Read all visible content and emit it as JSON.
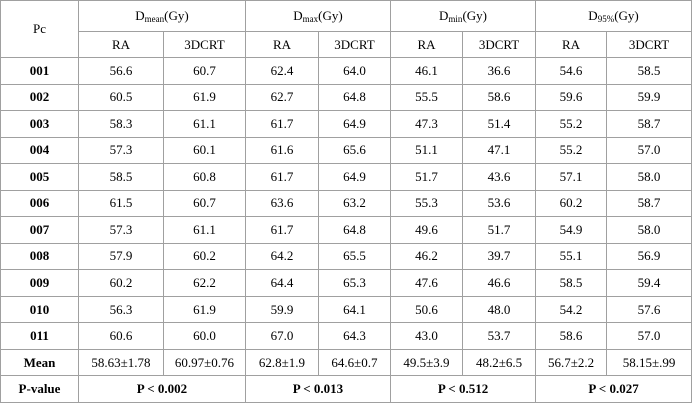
{
  "table": {
    "corner": "Pc",
    "groups": [
      {
        "base": "D",
        "sub": "mean",
        "unit": "(Gy)"
      },
      {
        "base": "D",
        "sub": "max",
        "unit": "(Gy)"
      },
      {
        "base": "D",
        "sub": "min",
        "unit": "(Gy)"
      },
      {
        "base": "D",
        "sub": "95%",
        "unit": "(Gy)"
      }
    ],
    "subheaders": [
      "RA",
      "3DCRT",
      "RA",
      "3DCRT",
      "RA",
      "3DCRT",
      "RA",
      "3DCRT"
    ],
    "rows": [
      {
        "label": "001",
        "cells": [
          "56.6",
          "60.7",
          "62.4",
          "64.0",
          "46.1",
          "36.6",
          "54.6",
          "58.5"
        ]
      },
      {
        "label": "002",
        "cells": [
          "60.5",
          "61.9",
          "62.7",
          "64.8",
          "55.5",
          "58.6",
          "59.6",
          "59.9"
        ]
      },
      {
        "label": "003",
        "cells": [
          "58.3",
          "61.1",
          "61.7",
          "64.9",
          "47.3",
          "51.4",
          "55.2",
          "58.7"
        ]
      },
      {
        "label": "004",
        "cells": [
          "57.3",
          "60.1",
          "61.6",
          "65.6",
          "51.1",
          "47.1",
          "55.2",
          "57.0"
        ]
      },
      {
        "label": "005",
        "cells": [
          "58.5",
          "60.8",
          "61.7",
          "64.9",
          "51.7",
          "43.6",
          "57.1",
          "58.0"
        ]
      },
      {
        "label": "006",
        "cells": [
          "61.5",
          "60.7",
          "63.6",
          "63.2",
          "55.3",
          "53.6",
          "60.2",
          "58.7"
        ]
      },
      {
        "label": "007",
        "cells": [
          "57.3",
          "61.1",
          "61.7",
          "64.8",
          "49.6",
          "51.7",
          "54.9",
          "58.0"
        ]
      },
      {
        "label": "008",
        "cells": [
          "57.9",
          "60.2",
          "64.2",
          "65.5",
          "46.2",
          "39.7",
          "55.1",
          "56.9"
        ]
      },
      {
        "label": "009",
        "cells": [
          "60.2",
          "62.2",
          "64.4",
          "65.3",
          "47.6",
          "46.6",
          "58.5",
          "59.4"
        ]
      },
      {
        "label": "010",
        "cells": [
          "56.3",
          "61.9",
          "59.9",
          "64.1",
          "50.6",
          "48.0",
          "54.2",
          "57.6"
        ]
      },
      {
        "label": "011",
        "cells": [
          "60.6",
          "60.0",
          "67.0",
          "64.3",
          "43.0",
          "53.7",
          "58.6",
          "57.0"
        ]
      }
    ],
    "mean": {
      "label": "Mean",
      "cells": [
        "58.63±1.78",
        "60.97±0.76",
        "62.8±1.9",
        "64.6±0.7",
        "49.5±3.9",
        "48.2±6.5",
        "56.7±2.2",
        "58.15±.99"
      ]
    },
    "pvalue": {
      "label": "P-value",
      "cells": [
        "P < 0.002",
        "P < 0.013",
        "P < 0.512",
        "P < 0.027"
      ]
    }
  }
}
